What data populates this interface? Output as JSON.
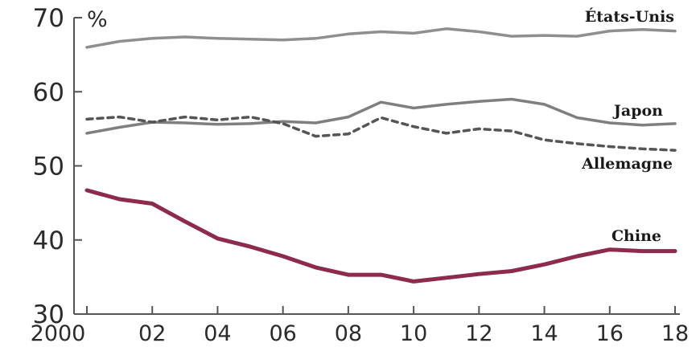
{
  "chart_data": {
    "type": "line",
    "unit": "%",
    "x_ticks": [
      "2000",
      "02",
      "04",
      "06",
      "08",
      "10",
      "12",
      "14",
      "16",
      "18"
    ],
    "y_ticks": [
      "30",
      "40",
      "50",
      "60",
      "70"
    ],
    "xlim": [
      2000,
      2018
    ],
    "ylim": [
      30,
      70
    ],
    "grid": false,
    "x": [
      2000,
      2001,
      2002,
      2003,
      2004,
      2005,
      2006,
      2007,
      2008,
      2009,
      2010,
      2011,
      2012,
      2013,
      2014,
      2015,
      2016,
      2017,
      2018
    ],
    "series": [
      {
        "name": "États-Unis",
        "color": "#8f8f8f",
        "dash": "solid",
        "values": [
          66.0,
          66.8,
          67.2,
          67.4,
          67.2,
          67.1,
          67.0,
          67.2,
          67.8,
          68.1,
          67.9,
          68.5,
          68.1,
          67.5,
          67.6,
          67.5,
          68.2,
          68.4,
          68.2
        ]
      },
      {
        "name": "Japon",
        "color": "#7f7f7f",
        "dash": "solid",
        "values": [
          54.4,
          55.2,
          55.9,
          55.8,
          55.6,
          55.7,
          56.0,
          55.8,
          56.6,
          58.6,
          57.8,
          58.3,
          58.7,
          59.0,
          58.3,
          56.5,
          55.8,
          55.5,
          55.7
        ]
      },
      {
        "name": "Allemagne",
        "color": "#555555",
        "dash": "dashed",
        "values": [
          56.3,
          56.6,
          55.9,
          56.6,
          56.2,
          56.6,
          55.7,
          54.0,
          54.3,
          56.5,
          55.3,
          54.4,
          55.0,
          54.7,
          53.5,
          53.0,
          52.6,
          52.3,
          52.1
        ]
      },
      {
        "name": "Chine",
        "color": "#8e2a4a",
        "dash": "solid",
        "values": [
          46.7,
          45.5,
          44.9,
          42.5,
          40.2,
          39.1,
          37.8,
          36.3,
          35.3,
          35.3,
          34.4,
          34.9,
          35.4,
          35.8,
          36.7,
          37.8,
          38.7,
          38.5,
          38.5
        ]
      }
    ]
  }
}
